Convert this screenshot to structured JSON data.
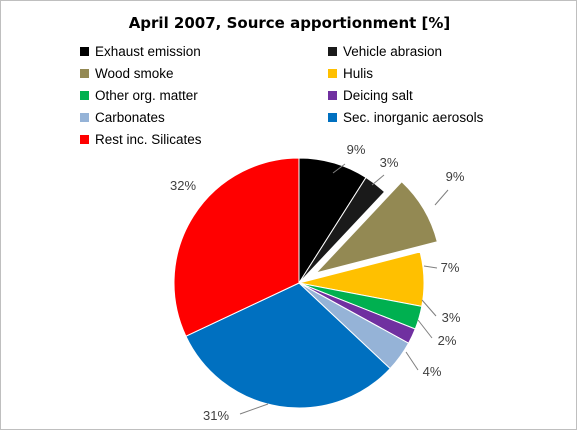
{
  "chart_data": {
    "type": "pie",
    "title": "April 2007, Source apportionment [%]",
    "legend_placement": "top",
    "slices": [
      {
        "name": "Exhaust emission",
        "value": 9,
        "label": "9%",
        "color": "#000000",
        "exploded": false
      },
      {
        "name": "Vehicle abrasion",
        "value": 3,
        "label": "3%",
        "color": "#1a1a1a",
        "exploded": false
      },
      {
        "name": "Wood smoke",
        "value": 9,
        "label": "9%",
        "color": "#938953",
        "exploded": true
      },
      {
        "name": "Hulis",
        "value": 7,
        "label": "7%",
        "color": "#ffc000",
        "exploded": false
      },
      {
        "name": "Other org. matter",
        "value": 3,
        "label": "3%",
        "color": "#00b050",
        "exploded": false
      },
      {
        "name": "Deicing salt",
        "value": 2,
        "label": "2%",
        "color": "#7030a0",
        "exploded": false
      },
      {
        "name": "Carbonates",
        "value": 4,
        "label": "4%",
        "color": "#95b3d7",
        "exploded": false
      },
      {
        "name": "Sec. inorganic aerosols",
        "value": 31,
        "label": "31%",
        "color": "#0070c0",
        "exploded": false
      },
      {
        "name": "Rest inc. Silicates",
        "value": 32,
        "label": "32%",
        "color": "#ff0000",
        "exploded": false
      }
    ]
  }
}
